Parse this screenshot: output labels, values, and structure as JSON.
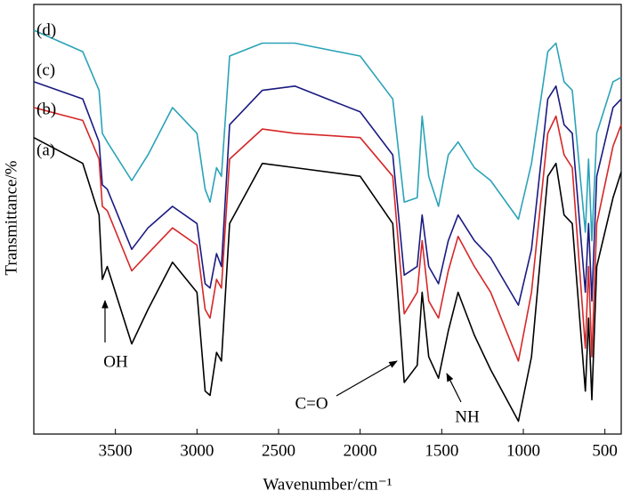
{
  "chart_data": {
    "type": "line",
    "xlabel": "Wavenumber/cm⁻¹",
    "ylabel": "Transmittance/%",
    "xlim": [
      4000,
      400
    ],
    "xticks": [
      3500,
      3000,
      2500,
      2000,
      1500,
      1000,
      500
    ],
    "ylim": [
      0,
      100
    ],
    "x": [
      4000,
      3700,
      3600,
      3580,
      3550,
      3400,
      3300,
      3150,
      3000,
      2950,
      2920,
      2880,
      2850,
      2800,
      2600,
      2400,
      2000,
      1800,
      1730,
      1650,
      1620,
      1580,
      1520,
      1460,
      1400,
      1300,
      1200,
      1030,
      950,
      850,
      800,
      750,
      700,
      620,
      600,
      580,
      550,
      450,
      400
    ],
    "series": [
      {
        "name": "(a)",
        "color": "#000000",
        "values": [
          69,
          63,
          51,
          36,
          39,
          21,
          29,
          40,
          33,
          10,
          9,
          19,
          17,
          49,
          63,
          62,
          60,
          49,
          12,
          16,
          33,
          18,
          13,
          24,
          33,
          23,
          15,
          3,
          18,
          60,
          63,
          51,
          49,
          10,
          27,
          8,
          39,
          55,
          61
        ]
      },
      {
        "name": "(b)",
        "color": "#d62728",
        "values": [
          76,
          73,
          64,
          53,
          52,
          38,
          42,
          48,
          44,
          29,
          27,
          36,
          34,
          64,
          71,
          70,
          69,
          60,
          28,
          33,
          45,
          31,
          27,
          38,
          46,
          39,
          33,
          17,
          33,
          70,
          74,
          65,
          62,
          20,
          39,
          18,
          49,
          67,
          72
        ]
      },
      {
        "name": "(c)",
        "color": "#1a1a80",
        "values": [
          82,
          78,
          68,
          58,
          57,
          43,
          48,
          53,
          49,
          35,
          34,
          42,
          39,
          72,
          80,
          81,
          75,
          65,
          37,
          39,
          51,
          39,
          35,
          45,
          51,
          45,
          41,
          30,
          43,
          78,
          81,
          72,
          70,
          33,
          49,
          31,
          60,
          76,
          78
        ]
      },
      {
        "name": "(d)",
        "color": "#2aa3b8",
        "values": [
          94,
          89,
          80,
          70,
          68,
          59,
          65,
          76,
          70,
          57,
          54,
          62,
          60,
          88,
          91,
          91,
          88,
          78,
          54,
          55,
          74,
          60,
          53,
          65,
          68,
          62,
          59,
          50,
          63,
          89,
          91,
          82,
          80,
          47,
          64,
          45,
          70,
          82,
          83
        ]
      }
    ],
    "annotations": [
      "OH",
      "C=O",
      "NH"
    ]
  }
}
